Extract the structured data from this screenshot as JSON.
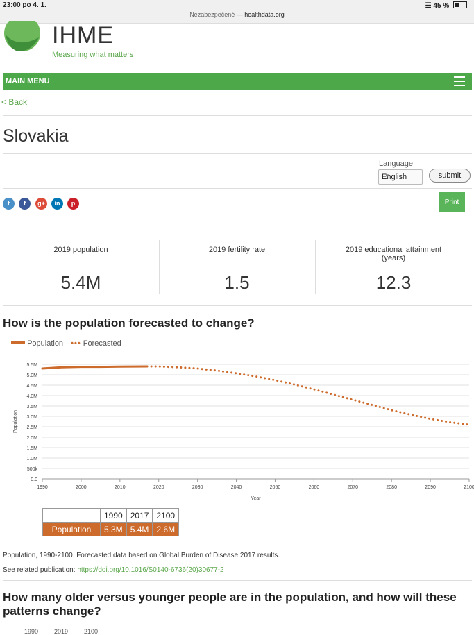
{
  "status_bar": {
    "time": "23:00  po 4. 1.",
    "battery": "45 %",
    "battery_level": 0.45
  },
  "browser": {
    "security": "Nezabezpečené —",
    "domain": "healthdata.org"
  },
  "header": {
    "logo_name": "IHME",
    "tagline": "Measuring what matters"
  },
  "menu": {
    "label": "MAIN MENU",
    "icon": "hamburger-icon"
  },
  "back_link": "< Back",
  "page_title": "Slovakia",
  "language": {
    "label": "Language",
    "selected": "English",
    "submit_label": "submit"
  },
  "social_icons": [
    "twitter-icon",
    "facebook-icon",
    "google-plus-icon",
    "linkedin-icon",
    "pinterest-icon"
  ],
  "print_label": "Print",
  "stats": [
    {
      "label": "2019 population",
      "value": "5.4M"
    },
    {
      "label": "2019 fertility rate",
      "value": "1.5"
    },
    {
      "label": "2019 educational attainment (years)",
      "value": "12.3"
    }
  ],
  "population_section": {
    "heading": "How is the population forecasted to change?",
    "legend_population": "Population",
    "legend_forecasted": "Forecasted"
  },
  "chart_data": {
    "type": "line",
    "xlabel": "Year",
    "ylabel": "Population",
    "x_ticks": [
      "1990",
      "2000",
      "2010",
      "2020",
      "2030",
      "2040",
      "2050",
      "2060",
      "2070",
      "2080",
      "2090",
      "2100"
    ],
    "y_ticks": [
      "0.0",
      "500k",
      "1.0M",
      "1.5M",
      "2.0M",
      "2.5M",
      "3.0M",
      "3.5M",
      "4.0M",
      "4.5M",
      "5.0M",
      "5.5M"
    ],
    "xlim": [
      1990,
      2100
    ],
    "ylim": [
      0,
      5.5
    ],
    "grid": true,
    "legend_position": "top-left",
    "colors": {
      "series": "#cd6b2c"
    },
    "series": [
      {
        "name": "Population",
        "style": "solid",
        "x": [
          1990,
          1995,
          2000,
          2005,
          2010,
          2017
        ],
        "y": [
          5.3,
          5.36,
          5.38,
          5.38,
          5.39,
          5.4
        ]
      },
      {
        "name": "Forecasted",
        "style": "dotted",
        "x": [
          2017,
          2020,
          2025,
          2030,
          2035,
          2040,
          2045,
          2050,
          2055,
          2060,
          2065,
          2070,
          2075,
          2080,
          2085,
          2090,
          2095,
          2100
        ],
        "y": [
          5.4,
          5.4,
          5.36,
          5.3,
          5.2,
          5.07,
          4.92,
          4.74,
          4.53,
          4.3,
          4.05,
          3.8,
          3.55,
          3.3,
          3.08,
          2.88,
          2.72,
          2.6
        ]
      }
    ]
  },
  "summary_table": {
    "years": [
      "1990",
      "2017",
      "2100"
    ],
    "row_label": "Population",
    "values": [
      "5.3M",
      "5.4M",
      "2.6M"
    ]
  },
  "caption": "Population, 1990-2100. Forecasted data based on Global Burden of Disease 2017 results.",
  "related": {
    "label": "See related publication:",
    "link": "https://doi.org/10.1016/S0140-6736(20)30677-2"
  },
  "second_section": {
    "heading": "How many older versus younger people are in the population, and how will these patterns change?",
    "legend_hint": "1990 ······ 2019 ······ 2100"
  }
}
